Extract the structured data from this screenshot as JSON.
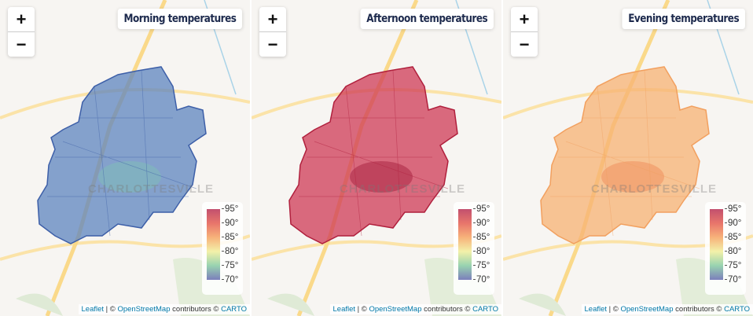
{
  "panels": [
    {
      "title": "Morning temperatures",
      "fill": "#5d84bf",
      "stroke": "#3d5fa8",
      "accent": "#7fc4b4"
    },
    {
      "title": "Afternoon temperatures",
      "fill": "#cf3a55",
      "stroke": "#b0203d",
      "accent": "#a01838"
    },
    {
      "title": "Evening temperatures",
      "fill": "#f7b173",
      "stroke": "#f2a05f",
      "accent": "#ee8455"
    }
  ],
  "zoom": {
    "in": "+",
    "out": "−"
  },
  "legend": {
    "labels": [
      "95°",
      "90°",
      "85°",
      "80°",
      "75°",
      "70°"
    ]
  },
  "map_label": "CHARLOTTESVILLE",
  "attribution": {
    "leaflet": "Leaflet",
    "sep": " | © ",
    "osm": "OpenStreetMap",
    "contrib": " contributors © ",
    "carto": "CARTO"
  }
}
